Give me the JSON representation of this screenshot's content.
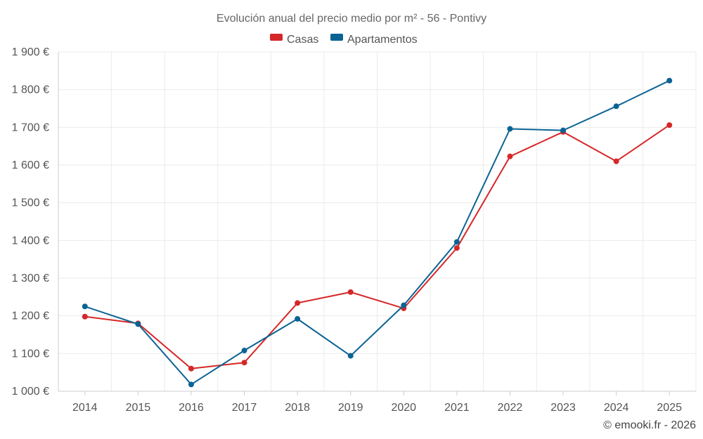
{
  "chart_data": {
    "type": "line",
    "title": "Evolución anual del precio medio por m² - 56 - Pontivy",
    "x": [
      "2014",
      "2015",
      "2016",
      "2017",
      "2018",
      "2019",
      "2020",
      "2021",
      "2022",
      "2023",
      "2024",
      "2025"
    ],
    "series": [
      {
        "name": "Casas",
        "color": "#d62728",
        "values": [
          1198,
          1180,
          1060,
          1076,
          1234,
          1263,
          1220,
          1380,
          1623,
          1688,
          1610,
          1706
        ]
      },
      {
        "name": "Apartamentos",
        "color": "#0b6394",
        "values": [
          1225,
          1178,
          1018,
          1108,
          1192,
          1094,
          1228,
          1396,
          1696,
          1692,
          1756,
          1824
        ]
      }
    ],
    "ylim": [
      1000,
      1900
    ],
    "yticks": [
      1000,
      1100,
      1200,
      1300,
      1400,
      1500,
      1600,
      1700,
      1800,
      1900
    ],
    "ytick_labels": [
      "1 000 €",
      "1 100 €",
      "1 200 €",
      "1 300 €",
      "1 400 €",
      "1 500 €",
      "1 600 €",
      "1 700 €",
      "1 800 €",
      "1 900 €"
    ],
    "grid": true,
    "legend_position": "top-center"
  },
  "credit": "© emooki.fr - 2026"
}
